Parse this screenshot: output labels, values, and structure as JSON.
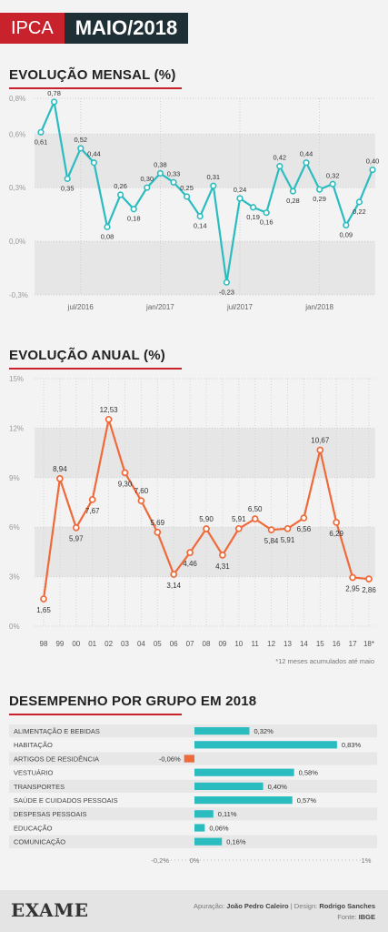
{
  "header": {
    "tag": "IPCA",
    "period": "MAIO/2018"
  },
  "sections": {
    "monthly_title": "EVOLUÇÃO MENSAL (%)",
    "annual_title": "EVOLUÇÃO ANUAL (%)",
    "groups_title": "DESEMPENHO POR GRUPO EM 2018"
  },
  "annual_footnote": "*12 meses acumulados até maio",
  "footer": {
    "logo": "EXAME",
    "credit_label1": "Apuração:",
    "credit_name1": "João Pedro Caleiro",
    "separator": "|",
    "credit_label2": "Design:",
    "credit_name2": "Rodrigo Sanches",
    "source_label": "Fonte:",
    "source_name": "IBGE"
  },
  "colors": {
    "monthly_line": "#2bbcc0",
    "annual_line": "#ef6a3a",
    "positive_bar": "#2bbcc0",
    "negative_bar": "#ef6a3a",
    "accent": "#c8232c"
  },
  "chart_data": [
    {
      "type": "line",
      "title": "EVOLUÇÃO MENSAL (%)",
      "ylim": [
        -0.3,
        0.8
      ],
      "yticks": [
        "0,8%",
        "0,6%",
        "0,3%",
        "0,0%",
        "-0,3%"
      ],
      "ytick_values": [
        0.8,
        0.6,
        0.3,
        0.0,
        -0.3
      ],
      "xticks": [
        {
          "label": "jul/2016",
          "index": 3
        },
        {
          "label": "jan/2017",
          "index": 9
        },
        {
          "label": "jul/2017",
          "index": 15
        },
        {
          "label": "jan/2018",
          "index": 21
        }
      ],
      "values": [
        0.61,
        0.78,
        0.35,
        0.52,
        0.44,
        0.08,
        0.26,
        0.18,
        0.3,
        0.38,
        0.33,
        0.25,
        0.14,
        0.31,
        -0.23,
        0.24,
        0.19,
        0.16,
        0.42,
        0.28,
        0.44,
        0.29,
        0.32,
        0.09,
        0.22,
        0.4
      ],
      "labels": [
        "0,61",
        "0,78",
        "0,35",
        "0,52",
        "0,44",
        "0,08",
        "0,26",
        "0,18",
        "0,30",
        "0,38",
        "0,33",
        "0,25",
        "0,14",
        "0,31",
        "-0,23",
        "0,24",
        "0,19",
        "0,16",
        "0,42",
        "0,28",
        "0,44",
        "0,29",
        "0,32",
        "0,09",
        "0,22",
        "0,40"
      ]
    },
    {
      "type": "line",
      "title": "EVOLUÇÃO ANUAL (%)",
      "ylim": [
        0,
        15
      ],
      "yticks": [
        "15%",
        "12%",
        "9%",
        "6%",
        "3%",
        "0%"
      ],
      "ytick_values": [
        15,
        12,
        9,
        6,
        3,
        0
      ],
      "categories": [
        "98",
        "99",
        "00",
        "01",
        "02",
        "03",
        "04",
        "05",
        "06",
        "07",
        "08",
        "09",
        "10",
        "11",
        "12",
        "13",
        "14",
        "15",
        "16",
        "17",
        "18*"
      ],
      "values": [
        1.65,
        8.94,
        5.97,
        7.67,
        12.53,
        9.3,
        7.6,
        5.69,
        3.14,
        4.46,
        5.9,
        4.31,
        5.91,
        6.5,
        5.84,
        5.91,
        6.56,
        10.67,
        6.29,
        2.95,
        2.86
      ],
      "labels": [
        "1,65",
        "8,94",
        "5,97",
        "7,67",
        "12,53",
        "9,30",
        "7,60",
        "5,69",
        "3,14",
        "4,46",
        "5,90",
        "4,31",
        "5,91",
        "6,50",
        "5,84",
        "5,91",
        "6,56",
        "10,67",
        "6,29",
        "2,95",
        "2,86"
      ]
    },
    {
      "type": "bar",
      "title": "DESEMPENHO POR GRUPO EM 2018",
      "xlim": [
        -0.2,
        1
      ],
      "xticks": [
        "-0,2%",
        "0%",
        "1%"
      ],
      "xtick_values": [
        -0.2,
        0,
        1
      ],
      "categories": [
        "ALIMENTAÇÃO E BEBIDAS",
        "HABITAÇÃO",
        "ARTIGOS DE RESIDÊNCIA",
        "VESTUÁRIO",
        "TRANSPORTES",
        "SAÚDE E CUIDADOS PESSOAIS",
        "DESPESAS PESSOAIS",
        "EDUCAÇÃO",
        "COMUNICAÇÃO"
      ],
      "values": [
        0.32,
        0.83,
        -0.06,
        0.58,
        0.4,
        0.57,
        0.11,
        0.06,
        0.16
      ],
      "labels": [
        "0,32%",
        "0,83%",
        "-0,06%",
        "0,58%",
        "0,40%",
        "0,57%",
        "0,11%",
        "0,06%",
        "0,16%"
      ]
    }
  ]
}
